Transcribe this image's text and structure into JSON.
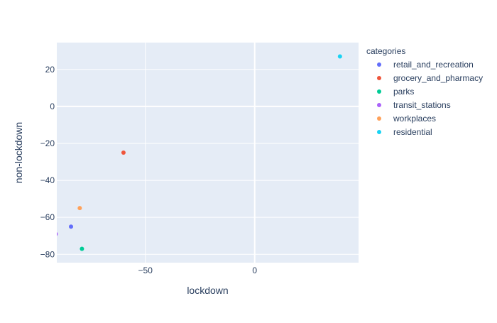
{
  "chart_data": {
    "type": "scatter",
    "title": "",
    "xlabel": "lockdown",
    "ylabel": "non-lockdown",
    "xlim": [
      -90.5,
      47.5
    ],
    "ylim": [
      -84.5,
      34.5
    ],
    "xticks": [
      -50,
      0
    ],
    "yticks": [
      20,
      0,
      -20,
      -40,
      -60,
      -80
    ],
    "grid": true,
    "legend": {
      "title": "categories",
      "placement": "right"
    },
    "series": [
      {
        "name": "retail_and_recreation",
        "color": "#636efa",
        "x": [
          -84
        ],
        "y": [
          -65
        ]
      },
      {
        "name": "grocery_and_pharmacy",
        "color": "#EF553B",
        "x": [
          -60
        ],
        "y": [
          -25
        ]
      },
      {
        "name": "parks",
        "color": "#00cc96",
        "x": [
          -79
        ],
        "y": [
          -77
        ]
      },
      {
        "name": "transit_stations",
        "color": "#ab63fa",
        "x": [
          -91
        ],
        "y": [
          -69
        ]
      },
      {
        "name": "workplaces",
        "color": "#FFA15A",
        "x": [
          -80
        ],
        "y": [
          -55
        ]
      },
      {
        "name": "residential",
        "color": "#19d3f3",
        "x": [
          39
        ],
        "y": [
          27
        ]
      }
    ]
  },
  "colors": {
    "plot_bg": "#e5ecf6",
    "grid": "#ffffff",
    "text": "#2a3f5f"
  }
}
